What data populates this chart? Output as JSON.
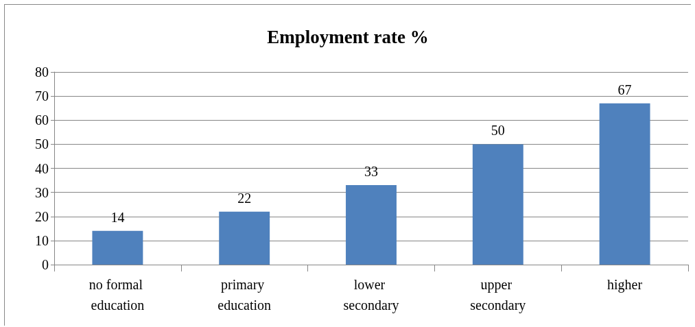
{
  "chart_data": {
    "type": "bar",
    "title": "Employment rate %",
    "categories": [
      "no formal education",
      "primary education",
      "lower secondary",
      "upper secondary",
      "higher"
    ],
    "values": [
      14,
      22,
      33,
      50,
      67
    ],
    "color": "#4f81bd",
    "ylim": [
      0,
      80
    ],
    "yticks": [
      0,
      10,
      20,
      30,
      40,
      50,
      60,
      70,
      80
    ],
    "grid": "y",
    "data_labels": true
  }
}
